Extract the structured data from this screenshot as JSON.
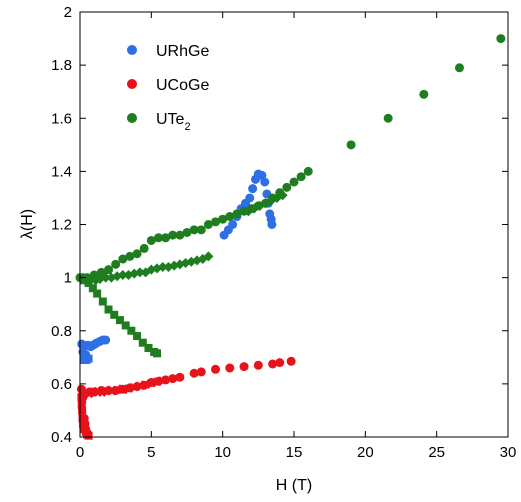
{
  "chart_data": {
    "type": "scatter",
    "xlabel": "H (T)",
    "ylabel": "λ(H)",
    "xlim": [
      0,
      30
    ],
    "ylim": [
      0.4,
      2
    ],
    "xticks": [
      "0",
      "5",
      "10",
      "15",
      "20",
      "25",
      "30"
    ],
    "yticks": [
      "0.4",
      "0.6",
      "0.8",
      "1",
      "1.2",
      "1.4",
      "1.6",
      "1.8",
      "2"
    ],
    "grid": false,
    "legend_position": "top-left",
    "legend": [
      {
        "label": "URhGe",
        "color": "#2f6fe6"
      },
      {
        "label": "UCoGe",
        "color": "#e8121b"
      },
      {
        "label": "UTe",
        "sub": "2",
        "color": "#1f7d1f"
      }
    ],
    "series": [
      {
        "name": "URhGe",
        "color": "#2f6fe6",
        "marker": "circle",
        "points": [
          [
            0.12,
            0.75
          ],
          [
            0.2,
            0.72
          ],
          [
            0.3,
            0.7
          ],
          [
            0.4,
            0.71
          ],
          [
            0.5,
            0.745
          ],
          [
            0.6,
            0.745
          ],
          [
            0.75,
            0.74
          ],
          [
            0.9,
            0.745
          ],
          [
            1.05,
            0.75
          ],
          [
            1.2,
            0.755
          ],
          [
            1.4,
            0.76
          ],
          [
            1.6,
            0.765
          ],
          [
            1.8,
            0.765
          ],
          [
            10.1,
            1.16
          ],
          [
            10.4,
            1.18
          ],
          [
            10.7,
            1.2
          ],
          [
            11.0,
            1.23
          ],
          [
            11.3,
            1.26
          ],
          [
            11.6,
            1.28
          ],
          [
            11.9,
            1.3
          ],
          [
            12.1,
            1.335
          ],
          [
            12.3,
            1.37
          ],
          [
            12.5,
            1.39
          ],
          [
            12.75,
            1.385
          ],
          [
            12.95,
            1.36
          ],
          [
            13.1,
            1.315
          ],
          [
            13.2,
            1.28
          ],
          [
            13.3,
            1.24
          ],
          [
            13.4,
            1.22
          ],
          [
            13.45,
            1.2
          ]
        ]
      },
      {
        "name": "URhGe-lowfield",
        "color": "#2f6fe6",
        "marker": "square",
        "points": [
          [
            0.3,
            0.69
          ],
          [
            0.45,
            0.69
          ],
          [
            0.6,
            0.695
          ],
          [
            0.4,
            0.7
          ]
        ]
      },
      {
        "name": "UCoGe",
        "color": "#e8121b",
        "marker": "circle",
        "points": [
          [
            0.1,
            0.58
          ],
          [
            0.2,
            0.55
          ],
          [
            0.3,
            0.47
          ],
          [
            0.35,
            0.45
          ],
          [
            0.4,
            0.43
          ],
          [
            0.5,
            0.415
          ],
          [
            0.7,
            0.57
          ],
          [
            1.0,
            0.57
          ],
          [
            1.5,
            0.575
          ],
          [
            2.0,
            0.575
          ],
          [
            2.5,
            0.575
          ],
          [
            3.0,
            0.58
          ],
          [
            3.5,
            0.585
          ],
          [
            4.0,
            0.59
          ],
          [
            4.5,
            0.595
          ],
          [
            5.0,
            0.605
          ],
          [
            5.5,
            0.61
          ],
          [
            6.0,
            0.615
          ],
          [
            6.5,
            0.62
          ],
          [
            7.0,
            0.625
          ],
          [
            8.0,
            0.64
          ],
          [
            8.5,
            0.645
          ],
          [
            9.5,
            0.655
          ],
          [
            10.5,
            0.66
          ],
          [
            11.5,
            0.665
          ],
          [
            12.5,
            0.67
          ],
          [
            13.5,
            0.675
          ],
          [
            14.0,
            0.68
          ],
          [
            14.8,
            0.685
          ]
        ]
      },
      {
        "name": "UCoGe-diamond",
        "color": "#e8121b",
        "marker": "diamond",
        "points": [
          [
            0.3,
            0.56
          ],
          [
            0.5,
            0.565
          ],
          [
            0.8,
            0.565
          ],
          [
            1.1,
            0.57
          ],
          [
            1.4,
            0.57
          ],
          [
            1.7,
            0.57
          ],
          [
            2.0,
            0.575
          ],
          [
            2.4,
            0.575
          ],
          [
            2.8,
            0.58
          ],
          [
            3.2,
            0.58
          ],
          [
            3.6,
            0.585
          ],
          [
            4.0,
            0.59
          ],
          [
            4.4,
            0.595
          ],
          [
            4.8,
            0.6
          ],
          [
            5.2,
            0.605
          ],
          [
            5.6,
            0.61
          ]
        ]
      },
      {
        "name": "UCoGe-square",
        "color": "#e8121b",
        "marker": "square",
        "points": [
          [
            0.1,
            0.55
          ],
          [
            0.12,
            0.52
          ],
          [
            0.15,
            0.5
          ],
          [
            0.18,
            0.47
          ],
          [
            0.22,
            0.45
          ],
          [
            0.3,
            0.43
          ],
          [
            0.4,
            0.42
          ],
          [
            0.5,
            0.41
          ],
          [
            0.6,
            0.405
          ],
          [
            0.15,
            0.54
          ]
        ]
      },
      {
        "name": "UTe2",
        "color": "#1f7d1f",
        "marker": "circle",
        "points": [
          [
            0.0,
            1.0
          ],
          [
            0.5,
            1.0
          ],
          [
            1.0,
            1.01
          ],
          [
            1.5,
            1.02
          ],
          [
            2.0,
            1.03
          ],
          [
            2.5,
            1.05
          ],
          [
            3.0,
            1.07
          ],
          [
            3.5,
            1.08
          ],
          [
            4.0,
            1.09
          ],
          [
            4.5,
            1.11
          ],
          [
            5.0,
            1.14
          ],
          [
            5.5,
            1.15
          ],
          [
            6.0,
            1.15
          ],
          [
            6.5,
            1.16
          ],
          [
            7.0,
            1.16
          ],
          [
            7.5,
            1.17
          ],
          [
            8.0,
            1.18
          ],
          [
            8.5,
            1.18
          ],
          [
            9.0,
            1.2
          ],
          [
            9.5,
            1.21
          ],
          [
            10.0,
            1.22
          ],
          [
            10.5,
            1.23
          ],
          [
            11.0,
            1.24
          ],
          [
            11.5,
            1.25
          ],
          [
            12.0,
            1.26
          ],
          [
            12.5,
            1.27
          ],
          [
            13.0,
            1.28
          ],
          [
            13.5,
            1.3
          ],
          [
            14.0,
            1.32
          ],
          [
            14.5,
            1.34
          ],
          [
            15.0,
            1.36
          ],
          [
            15.5,
            1.38
          ],
          [
            16.0,
            1.4
          ],
          [
            19.0,
            1.5
          ],
          [
            21.6,
            1.6
          ],
          [
            24.1,
            1.69
          ],
          [
            26.6,
            1.79
          ],
          [
            29.5,
            1.9
          ]
        ]
      },
      {
        "name": "UTe2-diamond",
        "color": "#1f7d1f",
        "marker": "diamond",
        "points": [
          [
            0.2,
            1.0
          ],
          [
            0.5,
            0.995
          ],
          [
            0.8,
            0.995
          ],
          [
            1.1,
            0.99
          ],
          [
            1.4,
            0.995
          ],
          [
            1.8,
            1.0
          ],
          [
            2.2,
            1.0
          ],
          [
            2.6,
            1.005
          ],
          [
            3.0,
            1.01
          ],
          [
            3.4,
            1.01
          ],
          [
            3.8,
            1.015
          ],
          [
            4.2,
            1.02
          ],
          [
            4.6,
            1.02
          ],
          [
            5.0,
            1.03
          ],
          [
            5.4,
            1.035
          ],
          [
            5.8,
            1.04
          ],
          [
            6.2,
            1.04
          ],
          [
            6.6,
            1.045
          ],
          [
            7.0,
            1.05
          ],
          [
            7.4,
            1.055
          ],
          [
            7.8,
            1.06
          ],
          [
            8.2,
            1.065
          ],
          [
            8.6,
            1.07
          ],
          [
            9.0,
            1.08
          ],
          [
            11.8,
            1.25
          ],
          [
            12.2,
            1.26
          ],
          [
            12.6,
            1.27
          ],
          [
            13.0,
            1.28
          ],
          [
            13.4,
            1.29
          ],
          [
            13.8,
            1.3
          ],
          [
            14.2,
            1.31
          ]
        ]
      },
      {
        "name": "UTe2-square",
        "color": "#1f7d1f",
        "marker": "square",
        "points": [
          [
            0.1,
            1.0
          ],
          [
            0.3,
            0.99
          ],
          [
            0.6,
            0.98
          ],
          [
            0.9,
            0.96
          ],
          [
            1.2,
            0.94
          ],
          [
            1.6,
            0.91
          ],
          [
            2.0,
            0.88
          ],
          [
            2.4,
            0.86
          ],
          [
            2.8,
            0.84
          ],
          [
            3.2,
            0.82
          ],
          [
            3.6,
            0.8
          ],
          [
            4.0,
            0.78
          ],
          [
            4.4,
            0.755
          ],
          [
            4.8,
            0.735
          ],
          [
            5.2,
            0.72
          ],
          [
            5.4,
            0.715
          ]
        ]
      }
    ]
  }
}
